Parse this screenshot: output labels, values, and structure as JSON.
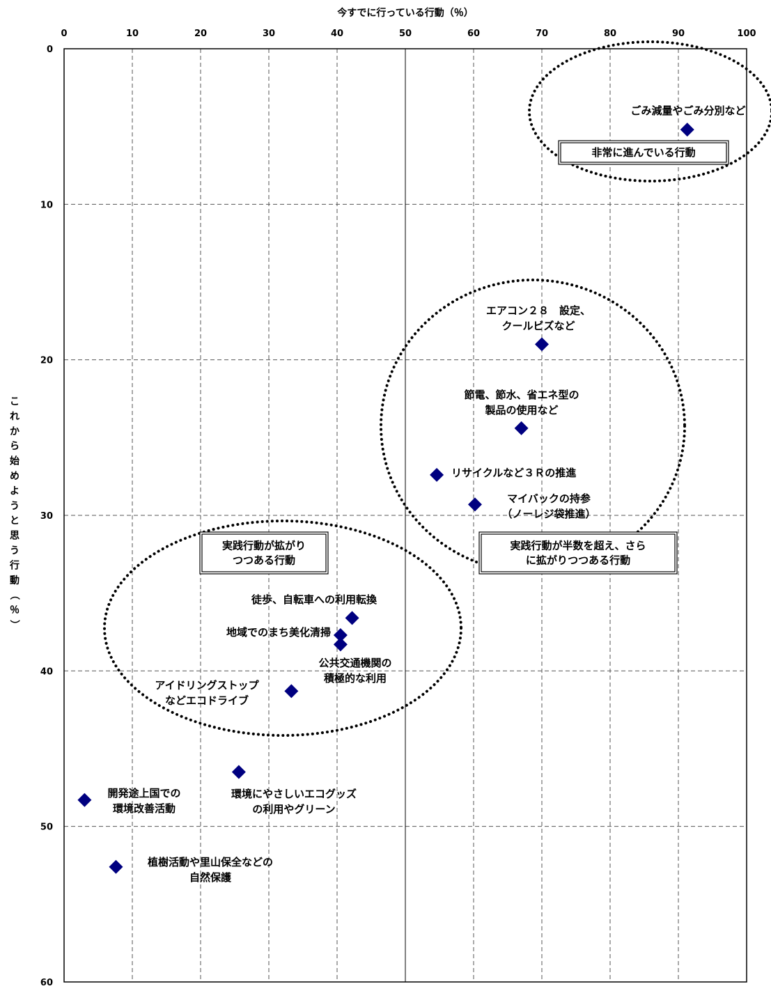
{
  "chart_data": {
    "type": "scatter",
    "title": "",
    "xlabel": "今すでに行っている行動（％）",
    "ylabel": "これから始めようと思う行動（％）",
    "xlim": [
      0,
      100
    ],
    "ylim": [
      0,
      60
    ],
    "y_inverted": true,
    "x_ticks": [
      "0",
      "10",
      "20",
      "30",
      "40",
      "50",
      "60",
      "70",
      "80",
      "90",
      "100"
    ],
    "y_ticks": [
      "0",
      "10",
      "20",
      "30",
      "40",
      "50",
      "60"
    ],
    "grid": true,
    "marker_color": "#000080",
    "points": [
      {
        "x": 91.3,
        "y": 5.2,
        "label": [
          "ごみ減量やごみ分別など"
        ]
      },
      {
        "x": 70.0,
        "y": 19.0,
        "label": [
          "エアコン２８　設定、",
          "クールビズなど"
        ]
      },
      {
        "x": 67.0,
        "y": 24.4,
        "label": [
          "節電、節水、省エネ型の",
          "製品の使用など"
        ]
      },
      {
        "x": 54.6,
        "y": 27.4,
        "label": [
          "リサイクルなど３Ｒの推進"
        ]
      },
      {
        "x": 60.2,
        "y": 29.3,
        "label": [
          "マイバックの持参",
          "（ノーレジ袋推進）"
        ]
      },
      {
        "x": 42.2,
        "y": 36.6,
        "label": [
          "徒歩、自転車への利用転換"
        ]
      },
      {
        "x": 40.5,
        "y": 37.7,
        "label": [
          "地域でのまち美化清掃"
        ]
      },
      {
        "x": 40.5,
        "y": 38.3,
        "label": [
          "公共交通機関の",
          "積極的な利用"
        ]
      },
      {
        "x": 33.3,
        "y": 41.3,
        "label": [
          "アイドリングストップ",
          "などエコドライブ"
        ]
      },
      {
        "x": 25.6,
        "y": 46.5,
        "label": [
          "環境にやさしいエコグッズ",
          "の利用やグリーン"
        ]
      },
      {
        "x": 3.0,
        "y": 48.3,
        "label": [
          "開発途上国での",
          "環境改善活動"
        ]
      },
      {
        "x": 7.6,
        "y": 52.6,
        "label": [
          "植樹活動や里山保全などの",
          "自然保護"
        ]
      }
    ],
    "annotations": [
      {
        "text": [
          "非常に進んでいる行動"
        ]
      },
      {
        "text": [
          "実践行動が半数を超え、さら",
          "に拡がりつつある行動"
        ]
      },
      {
        "text": [
          "実践行動が拡がり",
          "つつある行動"
        ]
      }
    ]
  }
}
